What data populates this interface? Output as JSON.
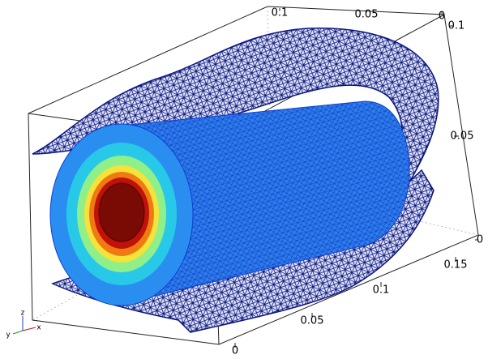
{
  "chart_data": {
    "type": "mesh3d",
    "top_axis": {
      "ticks": [
        0.1,
        0.05,
        0
      ]
    },
    "right_axis": {
      "ticks": [
        0.1,
        0.05,
        0
      ]
    },
    "bottom_axis": {
      "ticks": [
        0.15,
        0.1,
        0.05,
        0
      ]
    },
    "axis_triad": [
      "z",
      "y",
      "x"
    ]
  }
}
